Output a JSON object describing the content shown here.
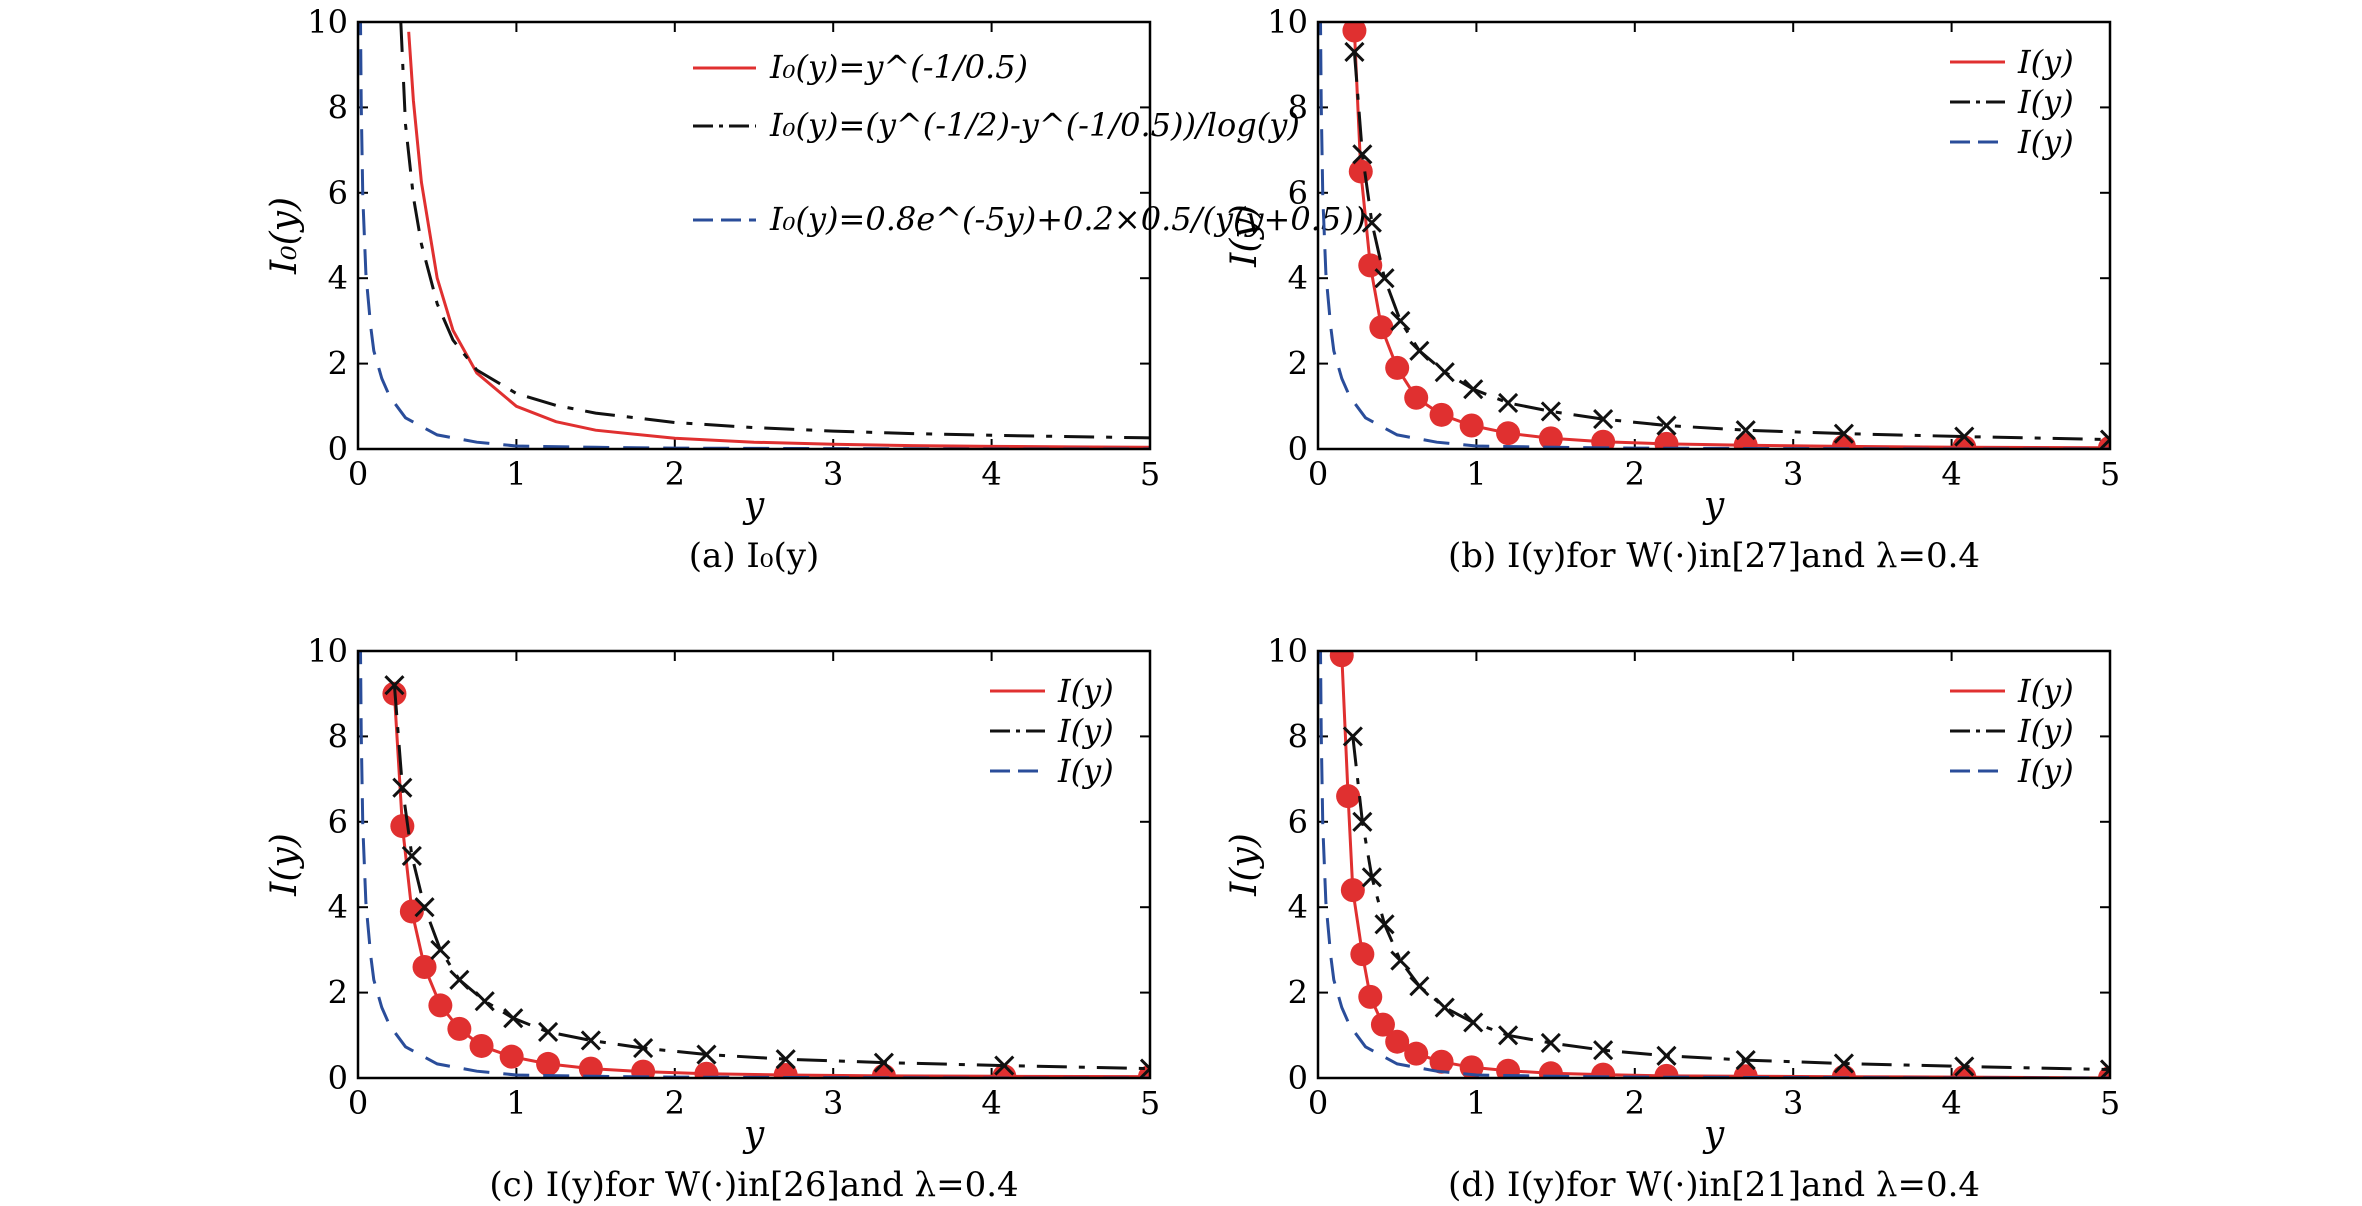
{
  "chart_data": [
    {
      "type": "line",
      "panel": "a",
      "caption": "(a)  I₀(y)",
      "xlabel": "y",
      "ylabel": "I₀(y)",
      "xlim": [
        0,
        5
      ],
      "ylim": [
        0,
        10
      ],
      "xticks": [
        "0",
        "1",
        "2",
        "3",
        "4",
        "5"
      ],
      "yticks": [
        "0",
        "2",
        "4",
        "6",
        "8",
        "10"
      ],
      "legend_position": "top-right",
      "series": [
        {
          "name": "I₀(y)=y^(-1/0.5)",
          "color": "#e03030",
          "style": "solid",
          "x": [
            0.32,
            0.35,
            0.4,
            0.5,
            0.6,
            0.75,
            1.0,
            1.25,
            1.5,
            2.0,
            2.5,
            3.0,
            3.5,
            4.0,
            4.5,
            5.0
          ],
          "y": [
            9.77,
            8.16,
            6.25,
            4.0,
            2.78,
            1.78,
            1.0,
            0.64,
            0.44,
            0.25,
            0.16,
            0.11,
            0.08,
            0.06,
            0.05,
            0.04
          ]
        },
        {
          "name": "I₀(y)=(y^(-1/2)-y^(-1/0.5))/log(y)",
          "color": "#111111",
          "style": "dashdot",
          "x": [
            0.27,
            0.3,
            0.35,
            0.4,
            0.5,
            0.6,
            0.75,
            1.0,
            1.25,
            1.5,
            2.0,
            2.5,
            3.0,
            3.5,
            4.0,
            4.5,
            5.0
          ],
          "y": [
            10.0,
            7.6,
            5.9,
            4.8,
            3.4,
            2.55,
            1.85,
            1.3,
            1.02,
            0.84,
            0.62,
            0.5,
            0.42,
            0.36,
            0.32,
            0.29,
            0.26
          ]
        },
        {
          "name": "I₀(y)=0.8e^(-5y)+0.2×0.5/(y(y+0.5))",
          "color": "#2a4d9a",
          "style": "dashed",
          "x": [
            0.015,
            0.02,
            0.03,
            0.05,
            0.08,
            0.1,
            0.15,
            0.2,
            0.3,
            0.5,
            0.75,
            1.0,
            1.5,
            2.0,
            3.0,
            4.0,
            5.0
          ],
          "y": [
            10.3,
            8.1,
            5.9,
            4.1,
            2.87,
            2.3,
            1.65,
            1.23,
            0.73,
            0.33,
            0.16,
            0.07,
            0.04,
            0.02,
            0.01,
            0.0,
            0.0
          ]
        }
      ]
    },
    {
      "type": "line",
      "panel": "b",
      "caption": "(b)  I(y)for W(·)in[27]and λ=0.4",
      "xlabel": "y",
      "ylabel": "I(y)",
      "xlim": [
        0,
        5
      ],
      "ylim": [
        0,
        10
      ],
      "xticks": [
        "0",
        "1",
        "2",
        "3",
        "4",
        "5"
      ],
      "yticks": [
        "0",
        "2",
        "4",
        "6",
        "8",
        "10"
      ],
      "legend_position": "top-right",
      "series": [
        {
          "name": "I(y)",
          "color": "#e03030",
          "style": "solid",
          "marker": "circle",
          "x": [
            0.23,
            0.27,
            0.33,
            0.4,
            0.5,
            0.62,
            0.78,
            0.97,
            1.2,
            1.47,
            1.8,
            2.2,
            2.7,
            3.32,
            4.08,
            5.0
          ],
          "y": [
            9.8,
            6.5,
            4.3,
            2.85,
            1.9,
            1.2,
            0.8,
            0.55,
            0.37,
            0.25,
            0.17,
            0.12,
            0.09,
            0.06,
            0.04,
            0.03
          ]
        },
        {
          "name": "I(y)",
          "color": "#111111",
          "style": "dashdot",
          "marker": "x",
          "x": [
            0.23,
            0.28,
            0.34,
            0.42,
            0.52,
            0.64,
            0.8,
            0.98,
            1.2,
            1.47,
            1.8,
            2.2,
            2.7,
            3.32,
            4.08,
            5.0
          ],
          "y": [
            9.3,
            6.9,
            5.3,
            4.0,
            3.0,
            2.3,
            1.8,
            1.4,
            1.08,
            0.88,
            0.7,
            0.55,
            0.44,
            0.36,
            0.29,
            0.22
          ]
        },
        {
          "name": "I(y)",
          "color": "#2a4d9a",
          "style": "dashed",
          "marker": "none",
          "x": [
            0.015,
            0.02,
            0.03,
            0.05,
            0.08,
            0.1,
            0.15,
            0.2,
            0.3,
            0.5,
            0.75,
            1.0,
            1.5,
            2.0,
            3.0,
            4.0,
            5.0
          ],
          "y": [
            10.3,
            8.1,
            5.9,
            4.1,
            2.87,
            2.3,
            1.65,
            1.23,
            0.73,
            0.33,
            0.16,
            0.07,
            0.04,
            0.02,
            0.01,
            0.0,
            0.0
          ]
        }
      ]
    },
    {
      "type": "line",
      "panel": "c",
      "caption": "(c)  I(y)for W(·)in[26]and λ=0.4",
      "xlabel": "y",
      "ylabel": "I(y)",
      "xlim": [
        0,
        5
      ],
      "ylim": [
        0,
        10
      ],
      "xticks": [
        "0",
        "1",
        "2",
        "3",
        "4",
        "5"
      ],
      "yticks": [
        "0",
        "2",
        "4",
        "6",
        "8",
        "10"
      ],
      "legend_position": "top-right",
      "series": [
        {
          "name": "I(y)",
          "color": "#e03030",
          "style": "solid",
          "marker": "circle",
          "x": [
            0.23,
            0.28,
            0.34,
            0.42,
            0.52,
            0.64,
            0.78,
            0.97,
            1.2,
            1.47,
            1.8,
            2.2,
            2.7,
            3.32,
            4.08,
            5.0
          ],
          "y": [
            9.0,
            5.9,
            3.9,
            2.6,
            1.7,
            1.15,
            0.75,
            0.5,
            0.33,
            0.22,
            0.15,
            0.1,
            0.07,
            0.05,
            0.04,
            0.03
          ]
        },
        {
          "name": "I(y)",
          "color": "#111111",
          "style": "dashdot",
          "marker": "x",
          "x": [
            0.23,
            0.28,
            0.34,
            0.42,
            0.52,
            0.64,
            0.8,
            0.98,
            1.2,
            1.47,
            1.8,
            2.2,
            2.7,
            3.32,
            4.08,
            5.0
          ],
          "y": [
            9.2,
            6.8,
            5.2,
            4.0,
            3.0,
            2.3,
            1.8,
            1.4,
            1.08,
            0.88,
            0.7,
            0.55,
            0.44,
            0.36,
            0.29,
            0.22
          ]
        },
        {
          "name": "I(y)",
          "color": "#2a4d9a",
          "style": "dashed",
          "marker": "none",
          "x": [
            0.015,
            0.02,
            0.03,
            0.05,
            0.08,
            0.1,
            0.15,
            0.2,
            0.3,
            0.5,
            0.75,
            1.0,
            1.5,
            2.0,
            3.0,
            4.0,
            5.0
          ],
          "y": [
            10.3,
            8.1,
            5.9,
            4.1,
            2.87,
            2.3,
            1.65,
            1.23,
            0.73,
            0.33,
            0.16,
            0.07,
            0.04,
            0.02,
            0.01,
            0.0,
            0.0
          ]
        }
      ]
    },
    {
      "type": "line",
      "panel": "d",
      "caption": "(d)  I(y)for W(·)in[21]and λ=0.4",
      "xlabel": "y",
      "ylabel": "I(y)",
      "xlim": [
        0,
        5
      ],
      "ylim": [
        0,
        10
      ],
      "xticks": [
        "0",
        "1",
        "2",
        "3",
        "4",
        "5"
      ],
      "yticks": [
        "0",
        "2",
        "4",
        "6",
        "8",
        "10"
      ],
      "legend_position": "top-right",
      "series": [
        {
          "name": "I(y)",
          "color": "#e03030",
          "style": "solid",
          "marker": "circle",
          "x": [
            0.15,
            0.19,
            0.22,
            0.28,
            0.33,
            0.41,
            0.5,
            0.62,
            0.78,
            0.97,
            1.2,
            1.47,
            1.8,
            2.2,
            2.7,
            3.32,
            4.08,
            5.0
          ],
          "y": [
            9.9,
            6.6,
            4.4,
            2.9,
            1.9,
            1.25,
            0.85,
            0.57,
            0.38,
            0.25,
            0.17,
            0.11,
            0.08,
            0.05,
            0.04,
            0.03,
            0.02,
            0.0
          ]
        },
        {
          "name": "I(y)",
          "color": "#111111",
          "style": "dashdot",
          "marker": "x",
          "x": [
            0.22,
            0.28,
            0.34,
            0.42,
            0.52,
            0.64,
            0.8,
            0.98,
            1.2,
            1.47,
            1.8,
            2.2,
            2.7,
            3.32,
            4.08,
            5.0
          ],
          "y": [
            8.0,
            6.0,
            4.7,
            3.6,
            2.75,
            2.15,
            1.65,
            1.3,
            1.0,
            0.82,
            0.65,
            0.52,
            0.42,
            0.34,
            0.27,
            0.2
          ]
        },
        {
          "name": "I(y)",
          "color": "#2a4d9a",
          "style": "dashed",
          "marker": "none",
          "x": [
            0.015,
            0.02,
            0.03,
            0.05,
            0.08,
            0.1,
            0.15,
            0.2,
            0.3,
            0.5,
            0.75,
            1.0,
            1.5,
            2.0,
            3.0,
            4.0,
            5.0
          ],
          "y": [
            10.3,
            8.1,
            5.9,
            4.1,
            2.87,
            2.3,
            1.65,
            1.23,
            0.73,
            0.33,
            0.16,
            0.07,
            0.04,
            0.02,
            0.01,
            0.0,
            0.0
          ]
        }
      ]
    }
  ]
}
